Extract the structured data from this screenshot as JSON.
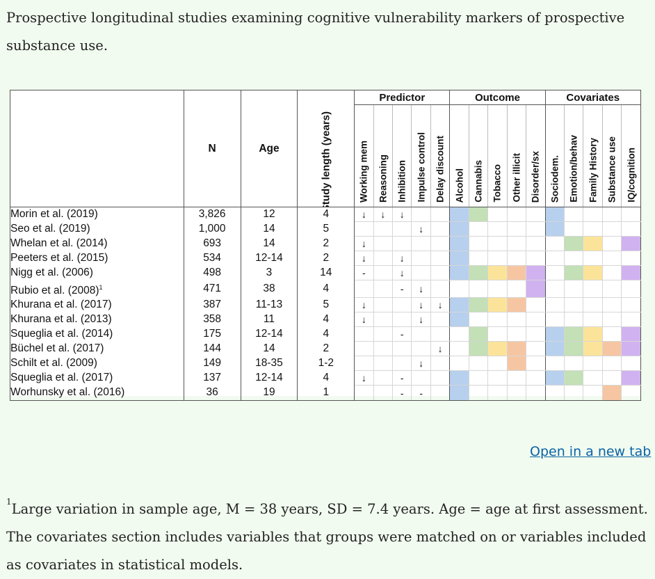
{
  "caption": "Prospective longitudinal studies examining cognitive vulnerability markers of prospective substance use.",
  "table": {
    "headers": {
      "n": "N",
      "age": "Age",
      "study_length": "Study length (years)",
      "group_predictor": "Predictor",
      "group_outcome": "Outcome",
      "group_covariates": "Covariates",
      "predictor_cols": [
        "Working mem",
        "Reasoning",
        "Inhibition",
        "Impulse control",
        "Delay discount"
      ],
      "outcome_cols": [
        "Alcohol",
        "Cannabis",
        "Tobacco",
        "Other illicit",
        "Disorder/sx"
      ],
      "covariate_cols": [
        "Sociodem.",
        "Emotion/behav",
        "Family History",
        "Substance use",
        "IQ/cognition"
      ]
    },
    "rows": [
      {
        "study": "Morin et al. (2019)",
        "n": "3,826",
        "age": "12",
        "length": "4",
        "p": [
          "↓",
          "↓",
          "↓",
          "",
          ""
        ],
        "o": [
          "blue",
          "green",
          "",
          "",
          ""
        ],
        "c": [
          "blue",
          "",
          "",
          "",
          ""
        ]
      },
      {
        "study": "Seo et al. (2019)",
        "n": "1,000",
        "age": "14",
        "length": "5",
        "p": [
          "",
          "",
          "",
          "↓",
          ""
        ],
        "o": [
          "blue",
          "",
          "",
          "",
          ""
        ],
        "c": [
          "blue",
          "",
          "",
          "",
          ""
        ]
      },
      {
        "study": "Whelan et al. (2014)",
        "n": "693",
        "age": "14",
        "length": "2",
        "p": [
          "↓",
          "",
          "",
          "",
          ""
        ],
        "o": [
          "blue",
          "",
          "",
          "",
          ""
        ],
        "c": [
          "",
          "green",
          "yellow",
          "",
          "purple"
        ]
      },
      {
        "study": "Peeters et al. (2015)",
        "n": "534",
        "age": "12-14",
        "length": "2",
        "p": [
          "↓",
          "",
          "↓",
          "",
          ""
        ],
        "o": [
          "blue",
          "",
          "",
          "",
          ""
        ],
        "c": [
          "",
          "",
          "",
          "",
          ""
        ]
      },
      {
        "study": "Nigg et al. (2006)",
        "n": "498",
        "age": "3",
        "length": "14",
        "p": [
          "-",
          "",
          "↓",
          "",
          ""
        ],
        "o": [
          "blue",
          "green",
          "yellow",
          "orange",
          "purple"
        ],
        "c": [
          "",
          "green",
          "yellow",
          "",
          "purple"
        ]
      },
      {
        "study": "Rubio et al. (2008)",
        "sup": "1",
        "n": "471",
        "age": "38",
        "length": "4",
        "p": [
          "",
          "",
          "-",
          "↓",
          ""
        ],
        "o": [
          "",
          "",
          "",
          "",
          "purple"
        ],
        "c": [
          "",
          "",
          "",
          "",
          ""
        ]
      },
      {
        "study": "Khurana et al. (2017)",
        "n": "387",
        "age": "11-13",
        "length": "5",
        "p": [
          "↓",
          "",
          "",
          "↓",
          "↓"
        ],
        "o": [
          "blue",
          "green",
          "yellow",
          "orange",
          ""
        ],
        "c": [
          "",
          "",
          "",
          "",
          ""
        ]
      },
      {
        "study": "Khurana et al. (2013)",
        "n": "358",
        "age": "11",
        "length": "4",
        "p": [
          "↓",
          "",
          "",
          "↓",
          ""
        ],
        "o": [
          "blue",
          "",
          "",
          "",
          ""
        ],
        "c": [
          "",
          "",
          "",
          "",
          ""
        ]
      },
      {
        "study": "Squeglia et al. (2014)",
        "n": "175",
        "age": "12-14",
        "length": "4",
        "p": [
          "",
          "",
          "-",
          "",
          ""
        ],
        "o": [
          "",
          "green",
          "",
          "",
          ""
        ],
        "c": [
          "blue",
          "green",
          "yellow",
          "",
          "purple"
        ]
      },
      {
        "study": "Büchel et al. (2017)",
        "n": "144",
        "age": "14",
        "length": "2",
        "p": [
          "",
          "",
          "",
          "",
          "↓"
        ],
        "o": [
          "",
          "green",
          "yellow",
          "orange",
          ""
        ],
        "c": [
          "blue",
          "green",
          "yellow",
          "orange",
          "purple"
        ]
      },
      {
        "study": "Schilt et al. (2009)",
        "n": "149",
        "age": "18-35",
        "length": "1-2",
        "p": [
          "",
          "",
          "",
          "↓",
          ""
        ],
        "o": [
          "",
          "",
          "",
          "orange",
          ""
        ],
        "c": [
          "",
          "",
          "",
          "",
          ""
        ]
      },
      {
        "study": "Squeglia et al. (2017)",
        "n": "137",
        "age": "12-14",
        "length": "4",
        "p": [
          "↓",
          "",
          "-",
          "",
          ""
        ],
        "o": [
          "blue",
          "",
          "",
          "",
          ""
        ],
        "c": [
          "blue",
          "green",
          "",
          "",
          "purple"
        ]
      },
      {
        "study": "Worhunsky et al. (2016)",
        "n": "36",
        "age": "19",
        "length": "1",
        "p": [
          "",
          "",
          "-",
          "-",
          ""
        ],
        "o": [
          "blue",
          "",
          "",
          "",
          ""
        ],
        "c": [
          "",
          "",
          "",
          "orange",
          ""
        ]
      }
    ]
  },
  "colors": {
    "blue": "#b7d0ee",
    "green": "#c3e0b6",
    "yellow": "#fbe49a",
    "orange": "#f6c6a3",
    "purple": "#d1b2f0"
  },
  "open_link": "Open in a new tab",
  "footnote": {
    "marker": "1",
    "text": "Large variation in sample age, M = 38 years, SD = 7.4 years. Age = age at first assessment. The covariates section includes variables that groups were matched on or variables included as covariates in statistical models."
  }
}
